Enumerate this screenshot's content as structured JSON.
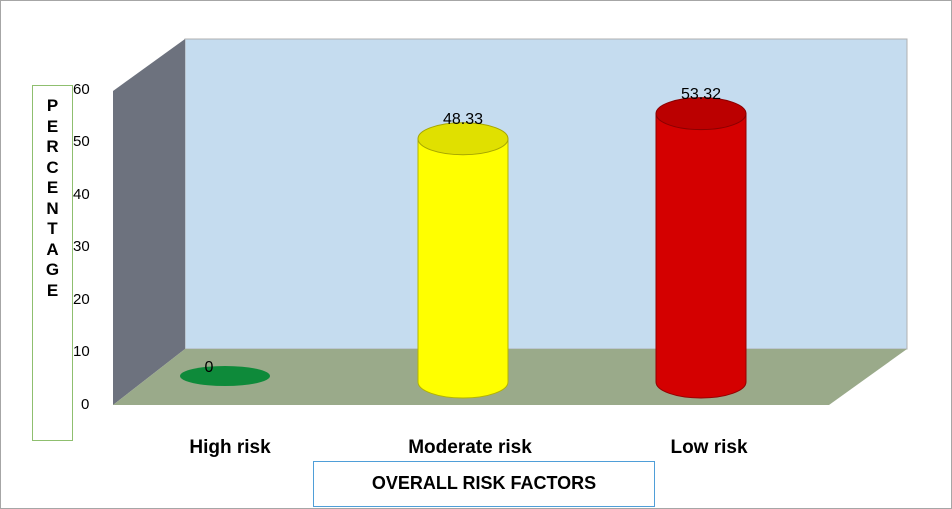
{
  "chart_data": {
    "type": "bar",
    "style": "3d-cylinder",
    "categories": [
      "High risk",
      "Moderate risk",
      "Low risk"
    ],
    "values": [
      0,
      48.33,
      53.32
    ],
    "data_labels": [
      "0",
      "48.33",
      "53.32"
    ],
    "bar_colors": [
      "#0e8a3a",
      "#ffff00",
      "#d40000"
    ],
    "ylabel": "PERCENTAGE",
    "xlabel": "OVERALL RISK FACTORS",
    "yticks": [
      "0",
      "10",
      "20",
      "30",
      "40",
      "50",
      "60"
    ],
    "ylim": [
      0,
      60
    ],
    "grid": false,
    "wall_color": "#c5dcef",
    "floor_color": "#9aaa8a",
    "side_wall_color": "#6d727e"
  }
}
